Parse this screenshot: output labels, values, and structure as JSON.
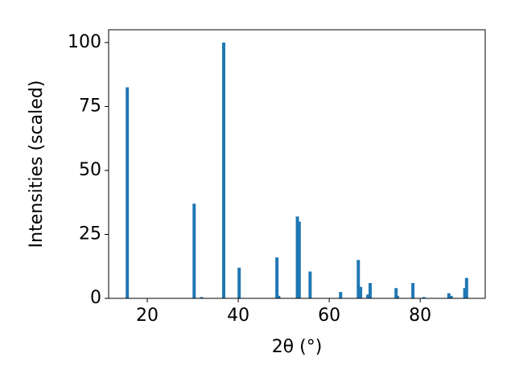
{
  "chart_data": {
    "type": "bar",
    "xlabel": "2θ (°)",
    "ylabel": "Intensities (scaled)",
    "x": [
      15.6,
      30.3,
      31.9,
      36.8,
      40.2,
      48.5,
      48.9,
      53.0,
      53.4,
      55.8,
      62.5,
      66.4,
      66.9,
      68.5,
      69.0,
      74.7,
      75.0,
      78.4,
      80.8,
      86.3,
      86.8,
      89.8,
      90.2
    ],
    "values": [
      82.5,
      37,
      0.5,
      100,
      12,
      16,
      1,
      32,
      30,
      10.5,
      2.5,
      15,
      4.5,
      1.5,
      6,
      4,
      1,
      6,
      0.5,
      2,
      1,
      4,
      8
    ],
    "color": "#1f77b4",
    "xlim": [
      11.5,
      94.3
    ],
    "xticks": [
      20,
      40,
      60,
      80
    ],
    "ylim": [
      0,
      105
    ],
    "yticks": [
      0,
      25,
      50,
      75,
      100
    ]
  }
}
